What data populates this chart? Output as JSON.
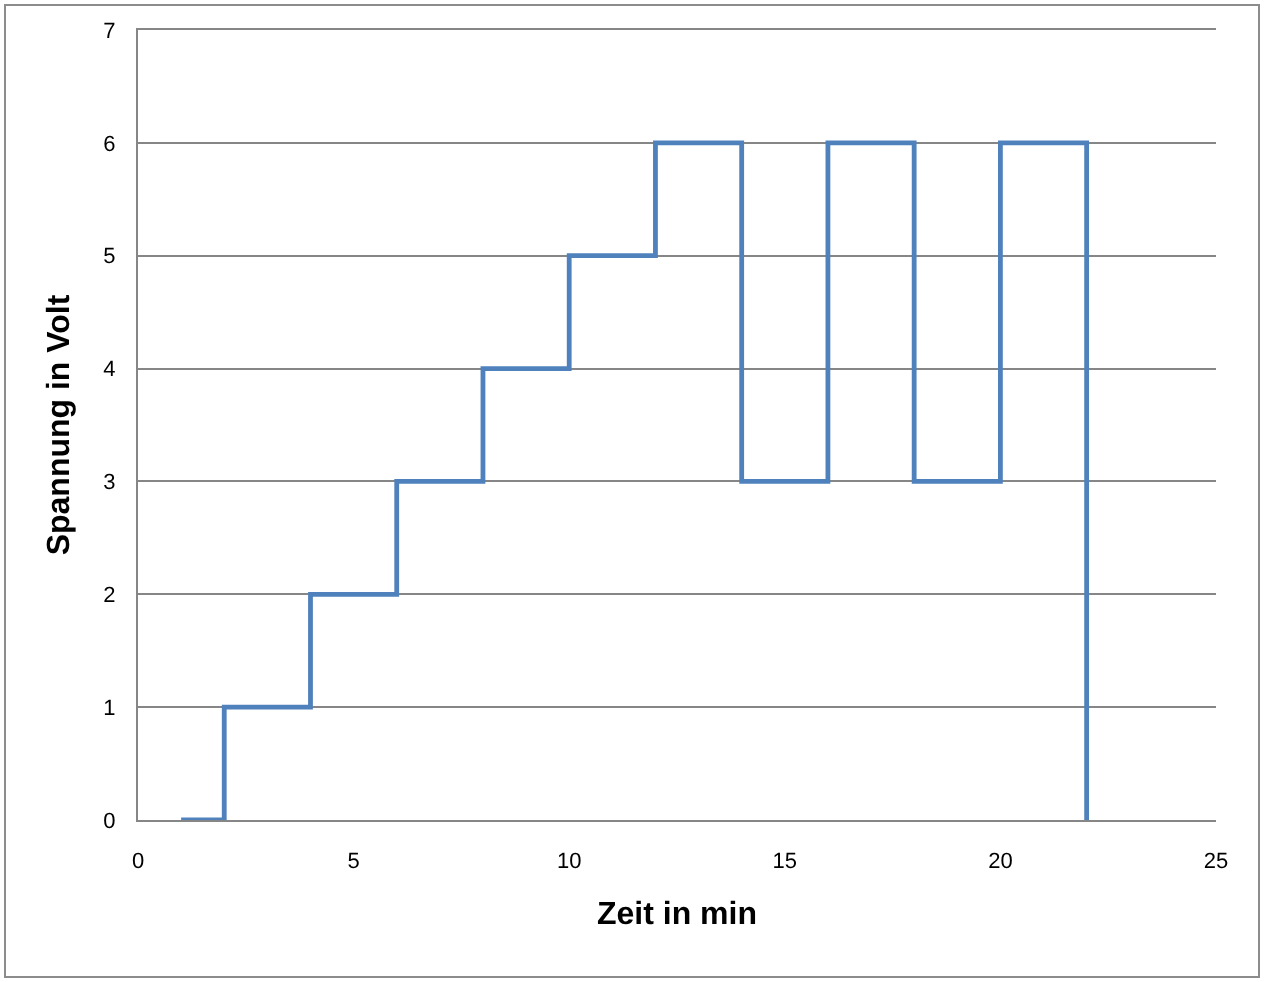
{
  "chart_data": {
    "type": "step",
    "xlabel": "Zeit in min",
    "ylabel": "Spannung in Volt",
    "x": [
      1,
      2,
      4,
      6,
      8,
      10,
      12,
      14,
      16,
      18,
      20,
      22
    ],
    "series": [
      {
        "color": "#4f81bd",
        "values": [
          0,
          1,
          2,
          3,
          4,
          5,
          6,
          3,
          6,
          3,
          6,
          0
        ]
      }
    ],
    "xlim": [
      0,
      25
    ],
    "xticks": [
      0,
      5,
      10,
      15,
      20,
      25
    ],
    "ylim": [
      0,
      7
    ],
    "yticks": [
      0,
      1,
      2,
      3,
      4,
      5,
      6,
      7
    ],
    "grid": "y",
    "marker": "none",
    "line_style": "solid"
  }
}
